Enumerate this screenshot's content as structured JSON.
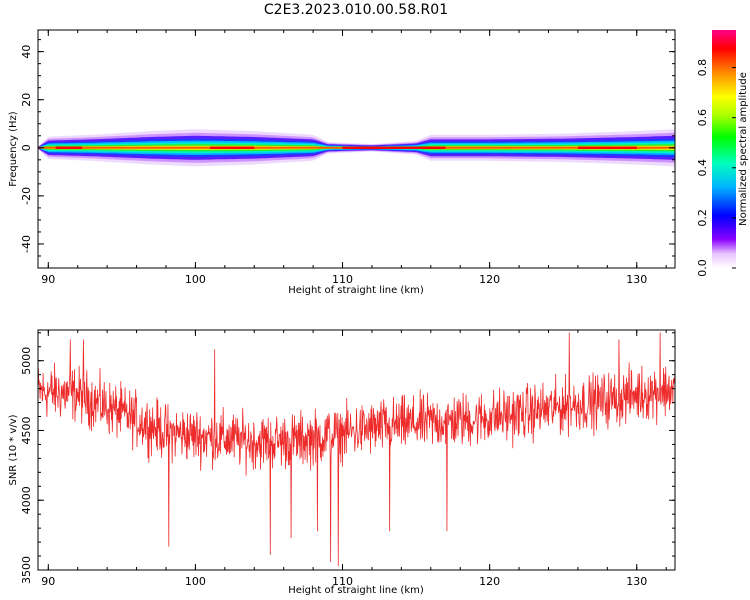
{
  "figure": {
    "title": "C2E3.2023.010.00.58.R01"
  },
  "colors": {
    "snr_line": "#ee2b2b",
    "axis": "#000000",
    "background": "#ffffff"
  },
  "chart_data": [
    {
      "type": "heatmap",
      "title": "C2E3.2023.010.00.58.R01",
      "xlabel": "Height of straight line (km)",
      "ylabel": "Frequency (Hz)",
      "xlim": [
        89.3,
        132.6
      ],
      "ylim": [
        -50,
        49
      ],
      "x_ticks": [
        90,
        100,
        110,
        120,
        130
      ],
      "y_ticks": [
        -40,
        -20,
        0,
        20,
        40
      ],
      "colorbar": {
        "label": "Normalized spectral amplitude",
        "range": [
          0,
          0.95
        ],
        "ticks": [
          0.0,
          0.2,
          0.4,
          0.6,
          0.8
        ],
        "colormap": "rainbow (white-purple-blue-cyan-green-yellow-red-magenta)"
      },
      "band": {
        "center_frequency": 0,
        "half_width_hz": [
          {
            "x": 89.3,
            "hw": 0.3
          },
          {
            "x": 90.0,
            "hw": 3.0
          },
          {
            "x": 93.0,
            "hw": 3.5
          },
          {
            "x": 97.0,
            "hw": 4.5
          },
          {
            "x": 100.0,
            "hw": 5.0
          },
          {
            "x": 104.0,
            "hw": 4.5
          },
          {
            "x": 108.0,
            "hw": 3.5
          },
          {
            "x": 109.0,
            "hw": 1.5
          },
          {
            "x": 112.0,
            "hw": 1.0
          },
          {
            "x": 115.0,
            "hw": 1.8
          },
          {
            "x": 116.0,
            "hw": 3.5
          },
          {
            "x": 120.0,
            "hw": 3.5
          },
          {
            "x": 125.0,
            "hw": 3.8
          },
          {
            "x": 130.0,
            "hw": 4.5
          },
          {
            "x": 132.6,
            "hw": 5.0
          }
        ]
      }
    },
    {
      "type": "line",
      "xlabel": "Height of straight line (km)",
      "ylabel": "SNR (10 * v/v)",
      "xlim": [
        89.3,
        132.6
      ],
      "ylim": [
        3500,
        5220
      ],
      "x_ticks": [
        90,
        100,
        110,
        120,
        130
      ],
      "y_ticks": [
        3500,
        4000,
        4500,
        5000
      ],
      "series": [
        {
          "trend": [
            {
              "x": 89.3,
              "y": 4780
            },
            {
              "x": 92.0,
              "y": 4760
            },
            {
              "x": 95.0,
              "y": 4620
            },
            {
              "x": 98.0,
              "y": 4490
            },
            {
              "x": 101.0,
              "y": 4450
            },
            {
              "x": 104.0,
              "y": 4420
            },
            {
              "x": 107.0,
              "y": 4430
            },
            {
              "x": 110.0,
              "y": 4480
            },
            {
              "x": 113.0,
              "y": 4530
            },
            {
              "x": 116.0,
              "y": 4560
            },
            {
              "x": 119.0,
              "y": 4580
            },
            {
              "x": 122.0,
              "y": 4620
            },
            {
              "x": 125.0,
              "y": 4670
            },
            {
              "x": 128.0,
              "y": 4720
            },
            {
              "x": 130.0,
              "y": 4760
            },
            {
              "x": 132.6,
              "y": 4800
            }
          ],
          "spikes_min": [
            {
              "x": 98.2,
              "y": 3670
            },
            {
              "x": 105.1,
              "y": 3610
            },
            {
              "x": 106.5,
              "y": 3730
            },
            {
              "x": 108.3,
              "y": 3780
            },
            {
              "x": 109.2,
              "y": 3560
            },
            {
              "x": 109.7,
              "y": 3530
            },
            {
              "x": 113.2,
              "y": 3780
            },
            {
              "x": 117.1,
              "y": 3780
            }
          ],
          "spikes_max": [
            {
              "x": 91.5,
              "y": 5150
            },
            {
              "x": 92.4,
              "y": 5150
            },
            {
              "x": 101.3,
              "y": 5080
            },
            {
              "x": 125.4,
              "y": 5200
            },
            {
              "x": 128.8,
              "y": 5150
            },
            {
              "x": 131.6,
              "y": 5200
            }
          ]
        }
      ]
    }
  ]
}
